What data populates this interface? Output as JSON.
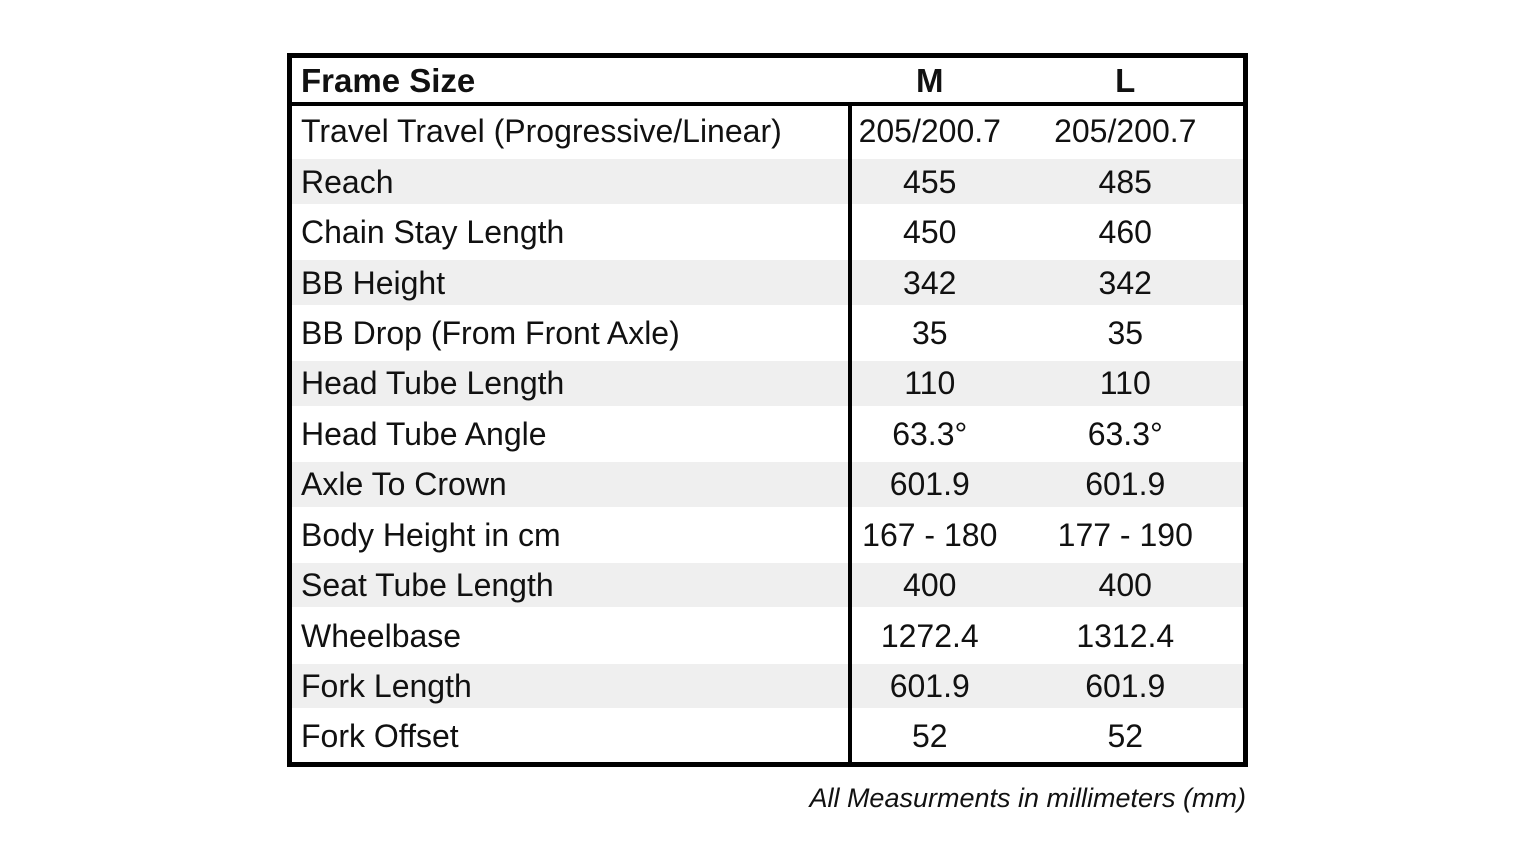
{
  "chart_data": {
    "type": "table",
    "title": "Frame Size",
    "columns": [
      "Frame Size",
      "M",
      "L"
    ],
    "rows": [
      {
        "label": "Travel Travel (Progressive/Linear)",
        "m": "205/200.7",
        "l": "205/200.7"
      },
      {
        "label": "Reach",
        "m": "455",
        "l": "485"
      },
      {
        "label": "Chain Stay Length",
        "m": "450",
        "l": "460"
      },
      {
        "label": "BB Height",
        "m": "342",
        "l": "342"
      },
      {
        "label": "BB Drop (From Front Axle)",
        "m": "35",
        "l": "35"
      },
      {
        "label": "Head Tube Length",
        "m": "110",
        "l": "110"
      },
      {
        "label": "Head Tube Angle",
        "m": "63.3°",
        "l": "63.3°"
      },
      {
        "label": "Axle To Crown",
        "m": "601.9",
        "l": "601.9"
      },
      {
        "label": "Body Height in cm",
        "m": "167 - 180",
        "l": "177 - 190"
      },
      {
        "label": "Seat Tube Length",
        "m": "400",
        "l": "400"
      },
      {
        "label": "Wheelbase",
        "m": "1272.4",
        "l": "1312.4"
      },
      {
        "label": "Fork Length",
        "m": "601.9",
        "l": "601.9"
      },
      {
        "label": "Fork Offset",
        "m": "52",
        "l": "52"
      }
    ],
    "footnote": "All Measurments in millimeters (mm)",
    "layout": {
      "stripe_rows": "even",
      "grid": "outer-border + header rule + label/value divider",
      "legend": "none"
    },
    "colors": {
      "background": "#ffffff",
      "stripe": "#efefef",
      "border": "#000000",
      "text": "#111111"
    }
  }
}
